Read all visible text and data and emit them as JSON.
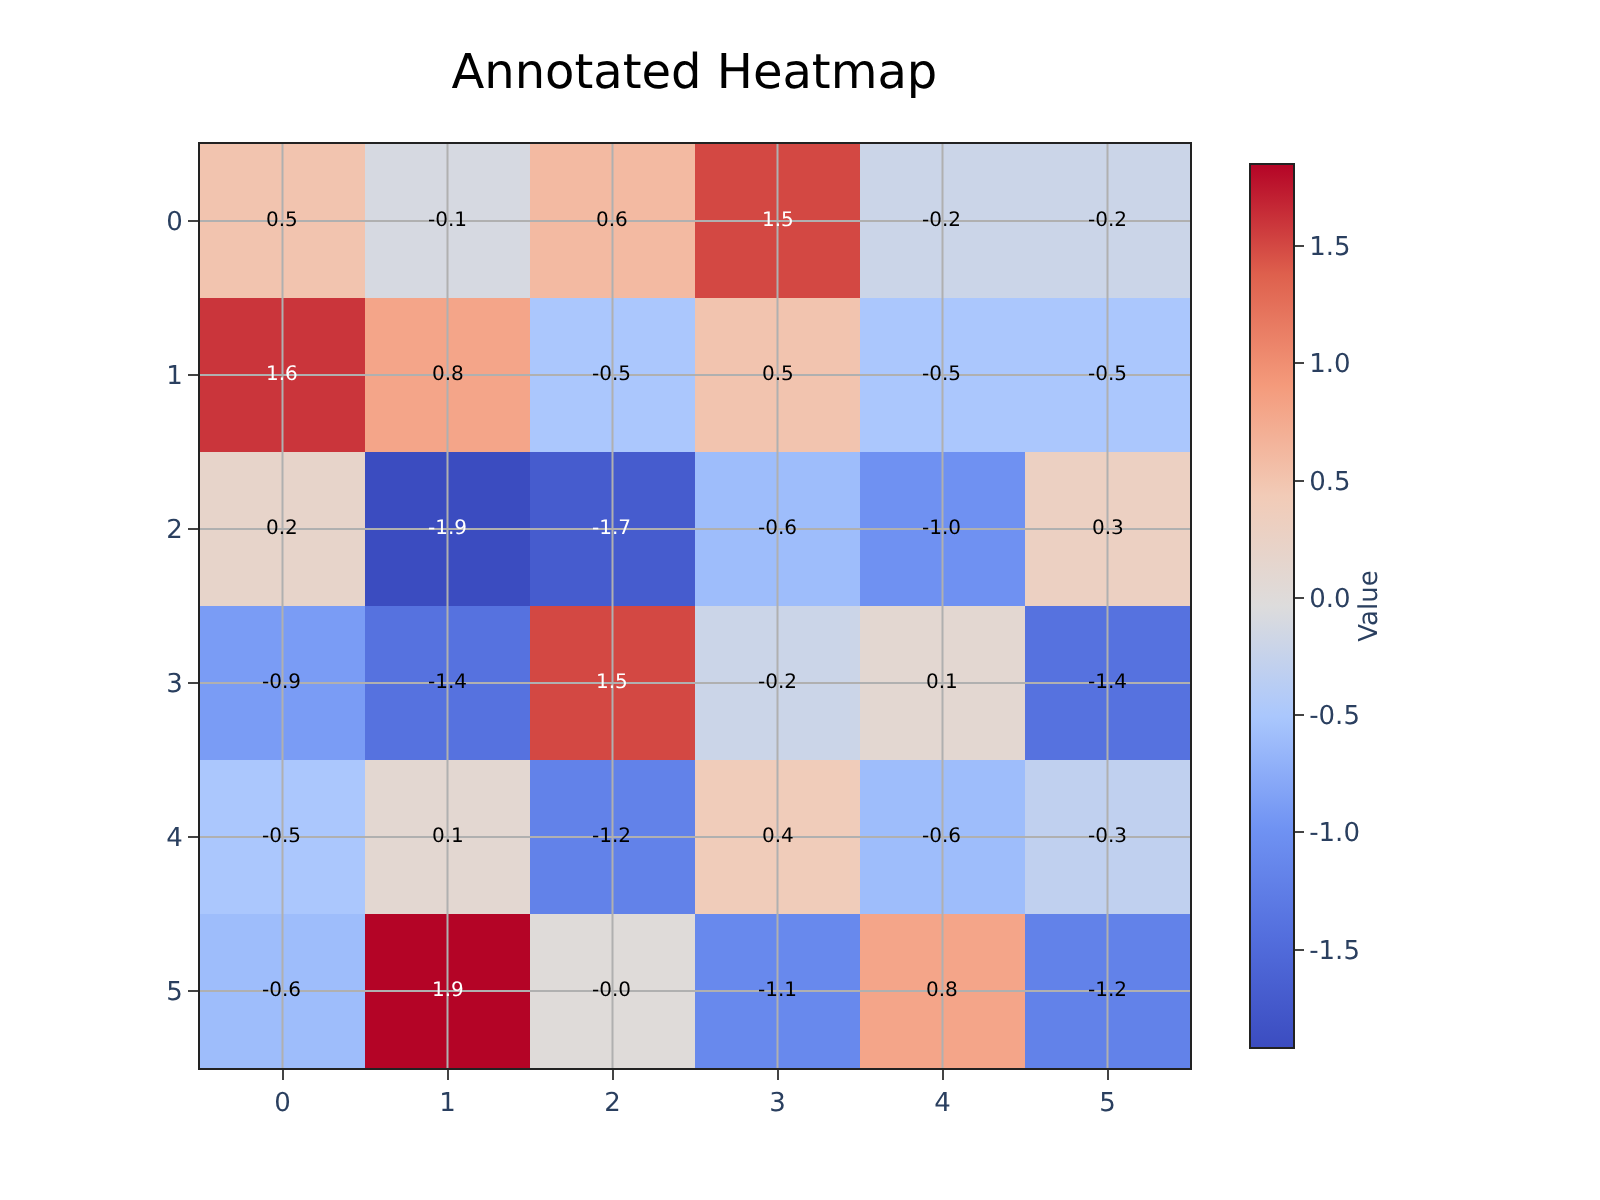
{
  "chart_data": {
    "type": "heatmap",
    "title": "Annotated Heatmap",
    "clabel": "Value",
    "categories": [
      "0",
      "1",
      "2",
      "3",
      "4",
      "5"
    ],
    "y_categories": [
      "0",
      "1",
      "2",
      "3",
      "4",
      "5"
    ],
    "cells": [
      [
        0.5,
        -0.1,
        0.6,
        1.5,
        -0.2,
        -0.2
      ],
      [
        1.6,
        0.8,
        -0.5,
        0.5,
        -0.5,
        -0.5
      ],
      [
        0.2,
        -1.92,
        -1.7,
        -0.6,
        -1.0,
        0.3
      ],
      [
        -0.9,
        -1.4,
        1.5,
        -0.2,
        0.1,
        -1.4
      ],
      [
        -0.5,
        0.1,
        -1.2,
        0.4,
        -0.6,
        -0.3
      ],
      [
        -0.6,
        1.85,
        0.0,
        -1.1,
        0.8,
        -1.2
      ]
    ],
    "cell_labels": [
      [
        "0.5",
        "-0.1",
        "0.6",
        "1.5",
        "-0.2",
        "-0.2"
      ],
      [
        "1.6",
        "0.8",
        "-0.5",
        "0.5",
        "-0.5",
        "-0.5"
      ],
      [
        "0.2",
        "-1.9",
        "-1.7",
        "-0.6",
        "-1.0",
        "0.3"
      ],
      [
        "-0.9",
        "-1.4",
        "1.5",
        "-0.2",
        "0.1",
        "-1.4"
      ],
      [
        "-0.5",
        "0.1",
        "-1.2",
        "0.4",
        "-0.6",
        "-0.3"
      ],
      [
        "-0.6",
        "1.9",
        "-0.0",
        "-1.1",
        "0.8",
        "-1.2"
      ]
    ],
    "clim": [
      -1.92,
      1.85
    ],
    "cticks": [
      {
        "value": -1.5,
        "label": "-1.5"
      },
      {
        "value": -1.0,
        "label": "-1.0"
      },
      {
        "value": -0.5,
        "label": "-0.5"
      },
      {
        "value": 0.0,
        "label": "0.0"
      },
      {
        "value": 0.5,
        "label": "0.5"
      },
      {
        "value": 1.0,
        "label": "1.0"
      },
      {
        "value": 1.5,
        "label": "1.5"
      }
    ],
    "grid": true
  }
}
